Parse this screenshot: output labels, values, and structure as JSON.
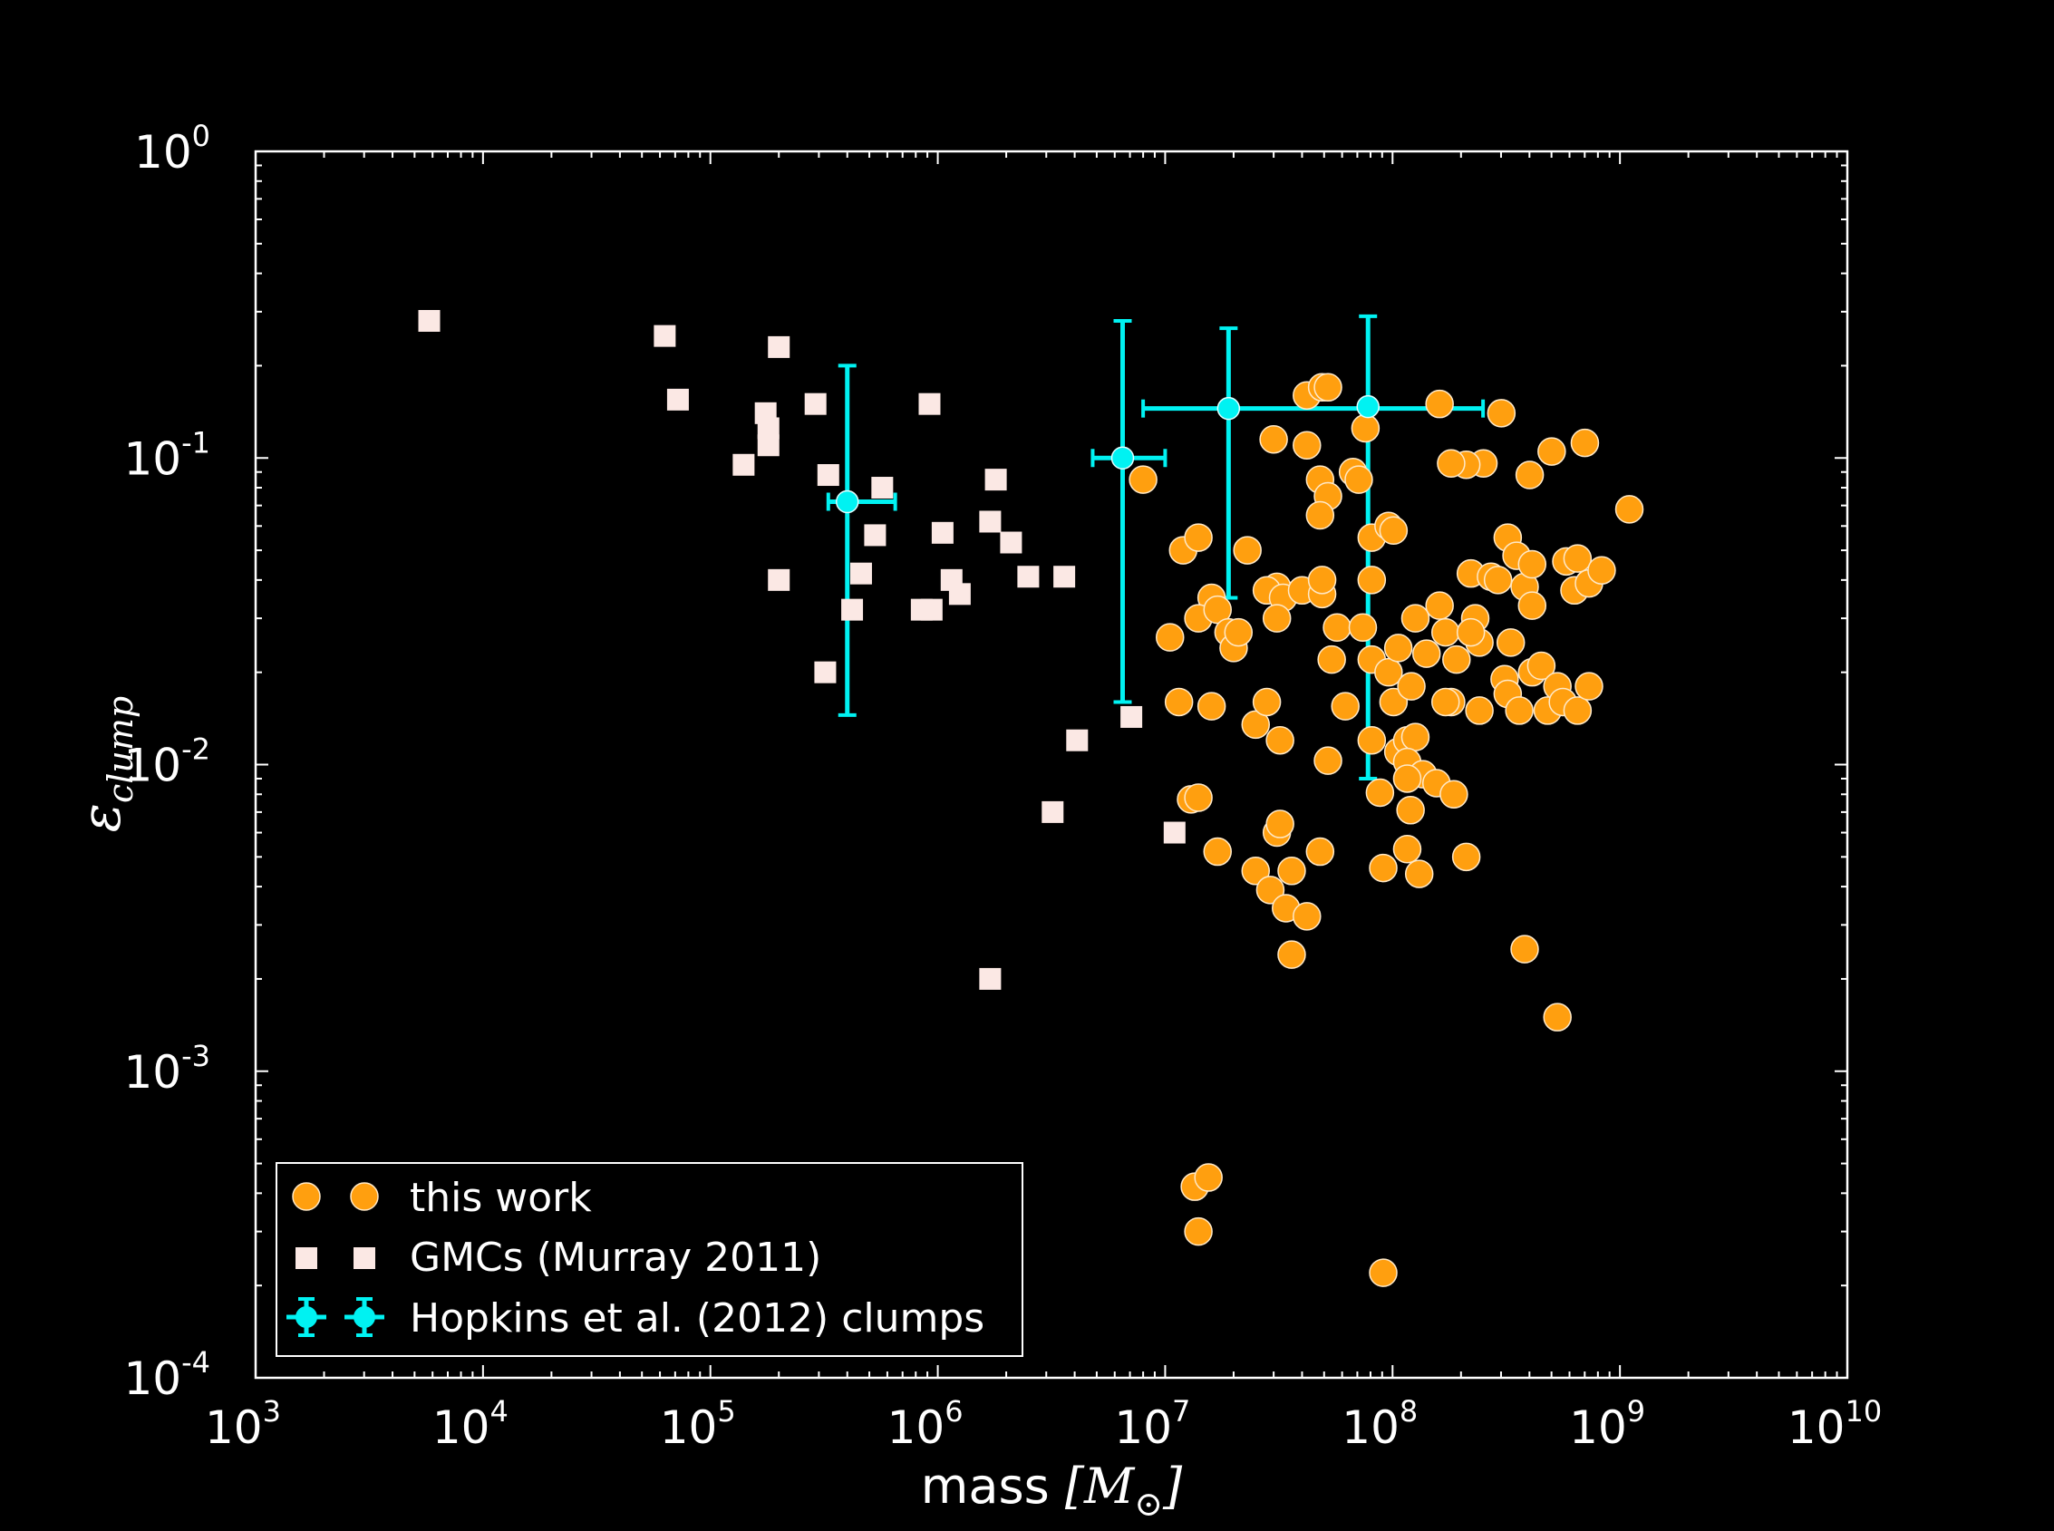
{
  "chart_data": {
    "type": "scatter",
    "xscale": "log",
    "yscale": "log",
    "xlim": [
      1000,
      10000000000
    ],
    "ylim": [
      0.0001,
      1
    ],
    "xticks": [
      {
        "base": "10",
        "exp": "3"
      },
      {
        "base": "10",
        "exp": "4"
      },
      {
        "base": "10",
        "exp": "5"
      },
      {
        "base": "10",
        "exp": "6"
      },
      {
        "base": "10",
        "exp": "7"
      },
      {
        "base": "10",
        "exp": "8"
      },
      {
        "base": "10",
        "exp": "9"
      },
      {
        "base": "10",
        "exp": "10"
      }
    ],
    "yticks": [
      {
        "base": "10",
        "exp": "-4"
      },
      {
        "base": "10",
        "exp": "-3"
      },
      {
        "base": "10",
        "exp": "-2"
      },
      {
        "base": "10",
        "exp": "-1"
      },
      {
        "base": "10",
        "exp": "0"
      }
    ],
    "xlabel": {
      "text": "mass ",
      "math": "[M",
      "sub": "⊙",
      "close": "]"
    },
    "ylabel": {
      "symbol": "ε",
      "sub": "clump"
    },
    "legend_position": "lower-left",
    "grid": false,
    "colors": {
      "this_work": "#ff9f0f",
      "gmc": "#fbe8e4",
      "hopkins": "#00f2f2",
      "axes": "#ffffff",
      "background": "#000000"
    },
    "series": [
      {
        "name": "this work",
        "marker": "circle",
        "points": [
          [
            8000000.0,
            0.085
          ],
          [
            12000000.0,
            0.05
          ],
          [
            14000000.0,
            0.055
          ],
          [
            16000000.0,
            0.035
          ],
          [
            14000000.0,
            0.03
          ],
          [
            17000000.0,
            0.032
          ],
          [
            10500000.0,
            0.026
          ],
          [
            19000000.0,
            0.027
          ],
          [
            20000000.0,
            0.024
          ],
          [
            23000000.0,
            0.05
          ],
          [
            21000000.0,
            0.027
          ],
          [
            30000000.0,
            0.115
          ],
          [
            31000000.0,
            0.038
          ],
          [
            28000000.0,
            0.037
          ],
          [
            33000000.0,
            0.035
          ],
          [
            40000000.0,
            0.037
          ],
          [
            31000000.0,
            0.03
          ],
          [
            42000000.0,
            0.16
          ],
          [
            42000000.0,
            0.11
          ],
          [
            49000000.0,
            0.17
          ],
          [
            52000000.0,
            0.17
          ],
          [
            48000000.0,
            0.085
          ],
          [
            52000000.0,
            0.075
          ],
          [
            48000000.0,
            0.065
          ],
          [
            49000000.0,
            0.036
          ],
          [
            49000000.0,
            0.04
          ],
          [
            57000000.0,
            0.028
          ],
          [
            54000000.0,
            0.022
          ],
          [
            67000000.0,
            0.09
          ],
          [
            71000000.0,
            0.085
          ],
          [
            76000000.0,
            0.125
          ],
          [
            81000000.0,
            0.055
          ],
          [
            96000000.0,
            0.06
          ],
          [
            101000000.0,
            0.058
          ],
          [
            81000000.0,
            0.04
          ],
          [
            74000000.0,
            0.028
          ],
          [
            81000000.0,
            0.022
          ],
          [
            96000000.0,
            0.02
          ],
          [
            106000000.0,
            0.024
          ],
          [
            101000000.0,
            0.016
          ],
          [
            126000000.0,
            0.03
          ],
          [
            121000000.0,
            0.018
          ],
          [
            141000000.0,
            0.023
          ],
          [
            161000000.0,
            0.033
          ],
          [
            171000000.0,
            0.027
          ],
          [
            181000000.0,
            0.016
          ],
          [
            171000000.0,
            0.016
          ],
          [
            191000000.0,
            0.022
          ],
          [
            221000000.0,
            0.042
          ],
          [
            231000000.0,
            0.03
          ],
          [
            241000000.0,
            0.025
          ],
          [
            241000000.0,
            0.015
          ],
          [
            221000000.0,
            0.027
          ],
          [
            251000000.0,
            0.096
          ],
          [
            271000000.0,
            0.041
          ],
          [
            291000000.0,
            0.04
          ],
          [
            211000000.0,
            0.095
          ],
          [
            181000000.0,
            0.096
          ],
          [
            161000000.0,
            0.15
          ],
          [
            301000000.0,
            0.14
          ],
          [
            321000000.0,
            0.055
          ],
          [
            351000000.0,
            0.048
          ],
          [
            381000000.0,
            0.038
          ],
          [
            411000000.0,
            0.045
          ],
          [
            411000000.0,
            0.033
          ],
          [
            331000000.0,
            0.025
          ],
          [
            311000000.0,
            0.019
          ],
          [
            321000000.0,
            0.017
          ],
          [
            361000000.0,
            0.015
          ],
          [
            411000000.0,
            0.02
          ],
          [
            451000000.0,
            0.021
          ],
          [
            481000000.0,
            0.015
          ],
          [
            531000000.0,
            0.018
          ],
          [
            561000000.0,
            0.016
          ],
          [
            651000000.0,
            0.015
          ],
          [
            581000000.0,
            0.046
          ],
          [
            651000000.0,
            0.047
          ],
          [
            631000000.0,
            0.037
          ],
          [
            731000000.0,
            0.039
          ],
          [
            831000000.0,
            0.043
          ],
          [
            731000000.0,
            0.018
          ],
          [
            401000000.0,
            0.088
          ],
          [
            501000000.0,
            0.105
          ],
          [
            701000000.0,
            0.112
          ],
          [
            1100000000.0,
            0.068
          ],
          [
            11500000.0,
            0.016
          ],
          [
            16000000.0,
            0.0155
          ],
          [
            25000000.0,
            0.0135
          ],
          [
            28000000.0,
            0.016
          ],
          [
            32000000.0,
            0.012
          ],
          [
            52000000.0,
            0.0103
          ],
          [
            62000000.0,
            0.0155
          ],
          [
            81000000.0,
            0.012
          ],
          [
            106000000.0,
            0.011
          ],
          [
            116000000.0,
            0.012
          ],
          [
            126000000.0,
            0.0123
          ],
          [
            116000000.0,
            0.0102
          ],
          [
            136000000.0,
            0.0093
          ],
          [
            156000000.0,
            0.0087
          ],
          [
            116000000.0,
            0.009
          ],
          [
            186000000.0,
            0.008
          ],
          [
            88000000.0,
            0.0081
          ],
          [
            120000000.0,
            0.0071
          ],
          [
            13000000.0,
            0.0077
          ],
          [
            14000000.0,
            0.0078
          ],
          [
            31000000.0,
            0.006
          ],
          [
            32000000.0,
            0.0064
          ],
          [
            17000000.0,
            0.0052
          ],
          [
            25000000.0,
            0.0045
          ],
          [
            29000000.0,
            0.0039
          ],
          [
            34000000.0,
            0.0034
          ],
          [
            36000000.0,
            0.0045
          ],
          [
            42000000.0,
            0.0032
          ],
          [
            48000000.0,
            0.0052
          ],
          [
            36000000.0,
            0.0024
          ],
          [
            91000000.0,
            0.0046
          ],
          [
            116000000.0,
            0.0053
          ],
          [
            131000000.0,
            0.0044
          ],
          [
            211000000.0,
            0.005
          ],
          [
            381000000.0,
            0.0025
          ],
          [
            531000000.0,
            0.0015
          ],
          [
            13500000.0,
            0.00042
          ],
          [
            15500000.0,
            0.00045
          ],
          [
            14000000.0,
            0.0003
          ],
          [
            91000000.0,
            0.00022
          ]
        ]
      },
      {
        "name": "GMCs (Murray 2011)",
        "marker": "square",
        "points": [
          [
            5800.0,
            0.28
          ],
          [
            63000.0,
            0.25
          ],
          [
            72000.0,
            0.155
          ],
          [
            140000.0,
            0.095
          ],
          [
            175000.0,
            0.14
          ],
          [
            180000.0,
            0.125
          ],
          [
            180000.0,
            0.11
          ],
          [
            200000.0,
            0.23
          ],
          [
            200000.0,
            0.04
          ],
          [
            290000.0,
            0.15
          ],
          [
            320000.0,
            0.02
          ],
          [
            330000.0,
            0.088
          ],
          [
            420000.0,
            0.032
          ],
          [
            460000.0,
            0.042
          ],
          [
            530000.0,
            0.056
          ],
          [
            570000.0,
            0.08
          ],
          [
            850000.0,
            0.032
          ],
          [
            920000.0,
            0.15
          ],
          [
            940000.0,
            0.032
          ],
          [
            1050000.0,
            0.057
          ],
          [
            1150000.0,
            0.04
          ],
          [
            1250000.0,
            0.036
          ],
          [
            1700000.0,
            0.062
          ],
          [
            1800000.0,
            0.085
          ],
          [
            2100000.0,
            0.053
          ],
          [
            2500000.0,
            0.041
          ],
          [
            3200000.0,
            0.007
          ],
          [
            3600000.0,
            0.041
          ],
          [
            4100000.0,
            0.012
          ],
          [
            7100000.0,
            0.0143
          ],
          [
            11000000.0,
            0.006
          ],
          [
            1700000.0,
            0.002
          ]
        ]
      },
      {
        "name": "Hopkins et al. (2012) clumps",
        "marker": "circle",
        "points": [
          {
            "x": 400000.0,
            "y": 0.072,
            "xerr": [
              330000.0,
              650000.0
            ],
            "yerr": [
              0.0145,
              0.2
            ]
          },
          {
            "x": 6500000.0,
            "y": 0.1,
            "xerr": [
              4800000.0,
              10000000.0
            ],
            "yerr": [
              0.016,
              0.28
            ]
          },
          {
            "x": 19000000.0,
            "y": 0.145,
            "xerr": [
              8000000.0,
              250000000.0
            ],
            "yerr": [
              0.035,
              0.265
            ]
          },
          {
            "x": 78000000.0,
            "y": 0.147,
            "xerr": null,
            "yerr": [
              0.009,
              0.29
            ]
          }
        ]
      }
    ]
  }
}
